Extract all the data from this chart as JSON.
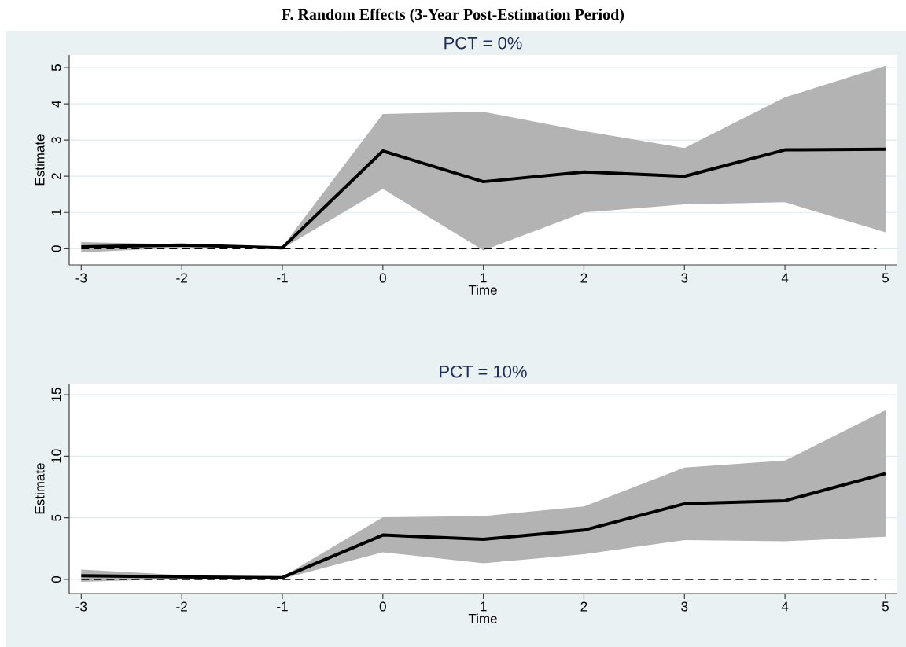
{
  "chart_data": [
    {
      "type": "line",
      "title": "PCT = 0%",
      "xlabel": "Time",
      "ylabel": "Estimate",
      "annotations": [
        "F. Random Effects (3-Year Post-Estimation Period)"
      ],
      "x": [
        -3,
        -2,
        -1,
        0,
        1,
        2,
        3,
        4,
        5
      ],
      "series": [
        {
          "color": "#000000",
          "values": [
            0.05,
            0.1,
            0.02,
            2.7,
            1.85,
            2.12,
            2.0,
            2.73,
            2.75
          ],
          "lower": [
            -0.1,
            0.03,
            0.0,
            1.65,
            -0.05,
            1.0,
            1.22,
            1.28,
            0.45
          ],
          "upper": [
            0.18,
            0.12,
            0.05,
            3.72,
            3.78,
            3.25,
            2.78,
            4.18,
            5.05
          ]
        }
      ],
      "ref_lines": [
        {
          "axis": "y",
          "value": 0,
          "color": "#000000",
          "line_style": "dashed"
        }
      ],
      "xlim": [
        -3.12,
        5.11
      ],
      "ylim": [
        -0.45,
        5.35
      ],
      "xticks": [
        -3,
        -2,
        -1,
        0,
        1,
        2,
        3,
        4,
        5
      ],
      "yticks": [
        0,
        1,
        2,
        3,
        4,
        5
      ],
      "grid": "y"
    },
    {
      "type": "line",
      "title": "PCT = 10%",
      "xlabel": "Time",
      "ylabel": "Estimate",
      "x": [
        -3,
        -2,
        -1,
        0,
        1,
        2,
        3,
        4,
        5
      ],
      "series": [
        {
          "color": "#000000",
          "values": [
            0.3,
            0.2,
            0.15,
            3.6,
            3.25,
            4.0,
            6.14,
            6.39,
            8.6
          ],
          "lower": [
            -0.2,
            0.05,
            0.05,
            2.21,
            1.31,
            2.04,
            3.2,
            3.1,
            3.47
          ],
          "upper": [
            0.8,
            0.35,
            0.2,
            5.04,
            5.14,
            5.92,
            9.09,
            9.65,
            13.75
          ]
        }
      ],
      "ref_lines": [
        {
          "axis": "y",
          "value": 0,
          "color": "#000000",
          "line_style": "dashed"
        }
      ],
      "xlim": [
        -3.12,
        5.11
      ],
      "ylim": [
        -1.15,
        15.9
      ],
      "xticks": [
        -3,
        -2,
        -1,
        0,
        1,
        2,
        3,
        4,
        5
      ],
      "yticks": [
        0,
        5,
        10,
        15
      ],
      "grid": "y"
    }
  ]
}
